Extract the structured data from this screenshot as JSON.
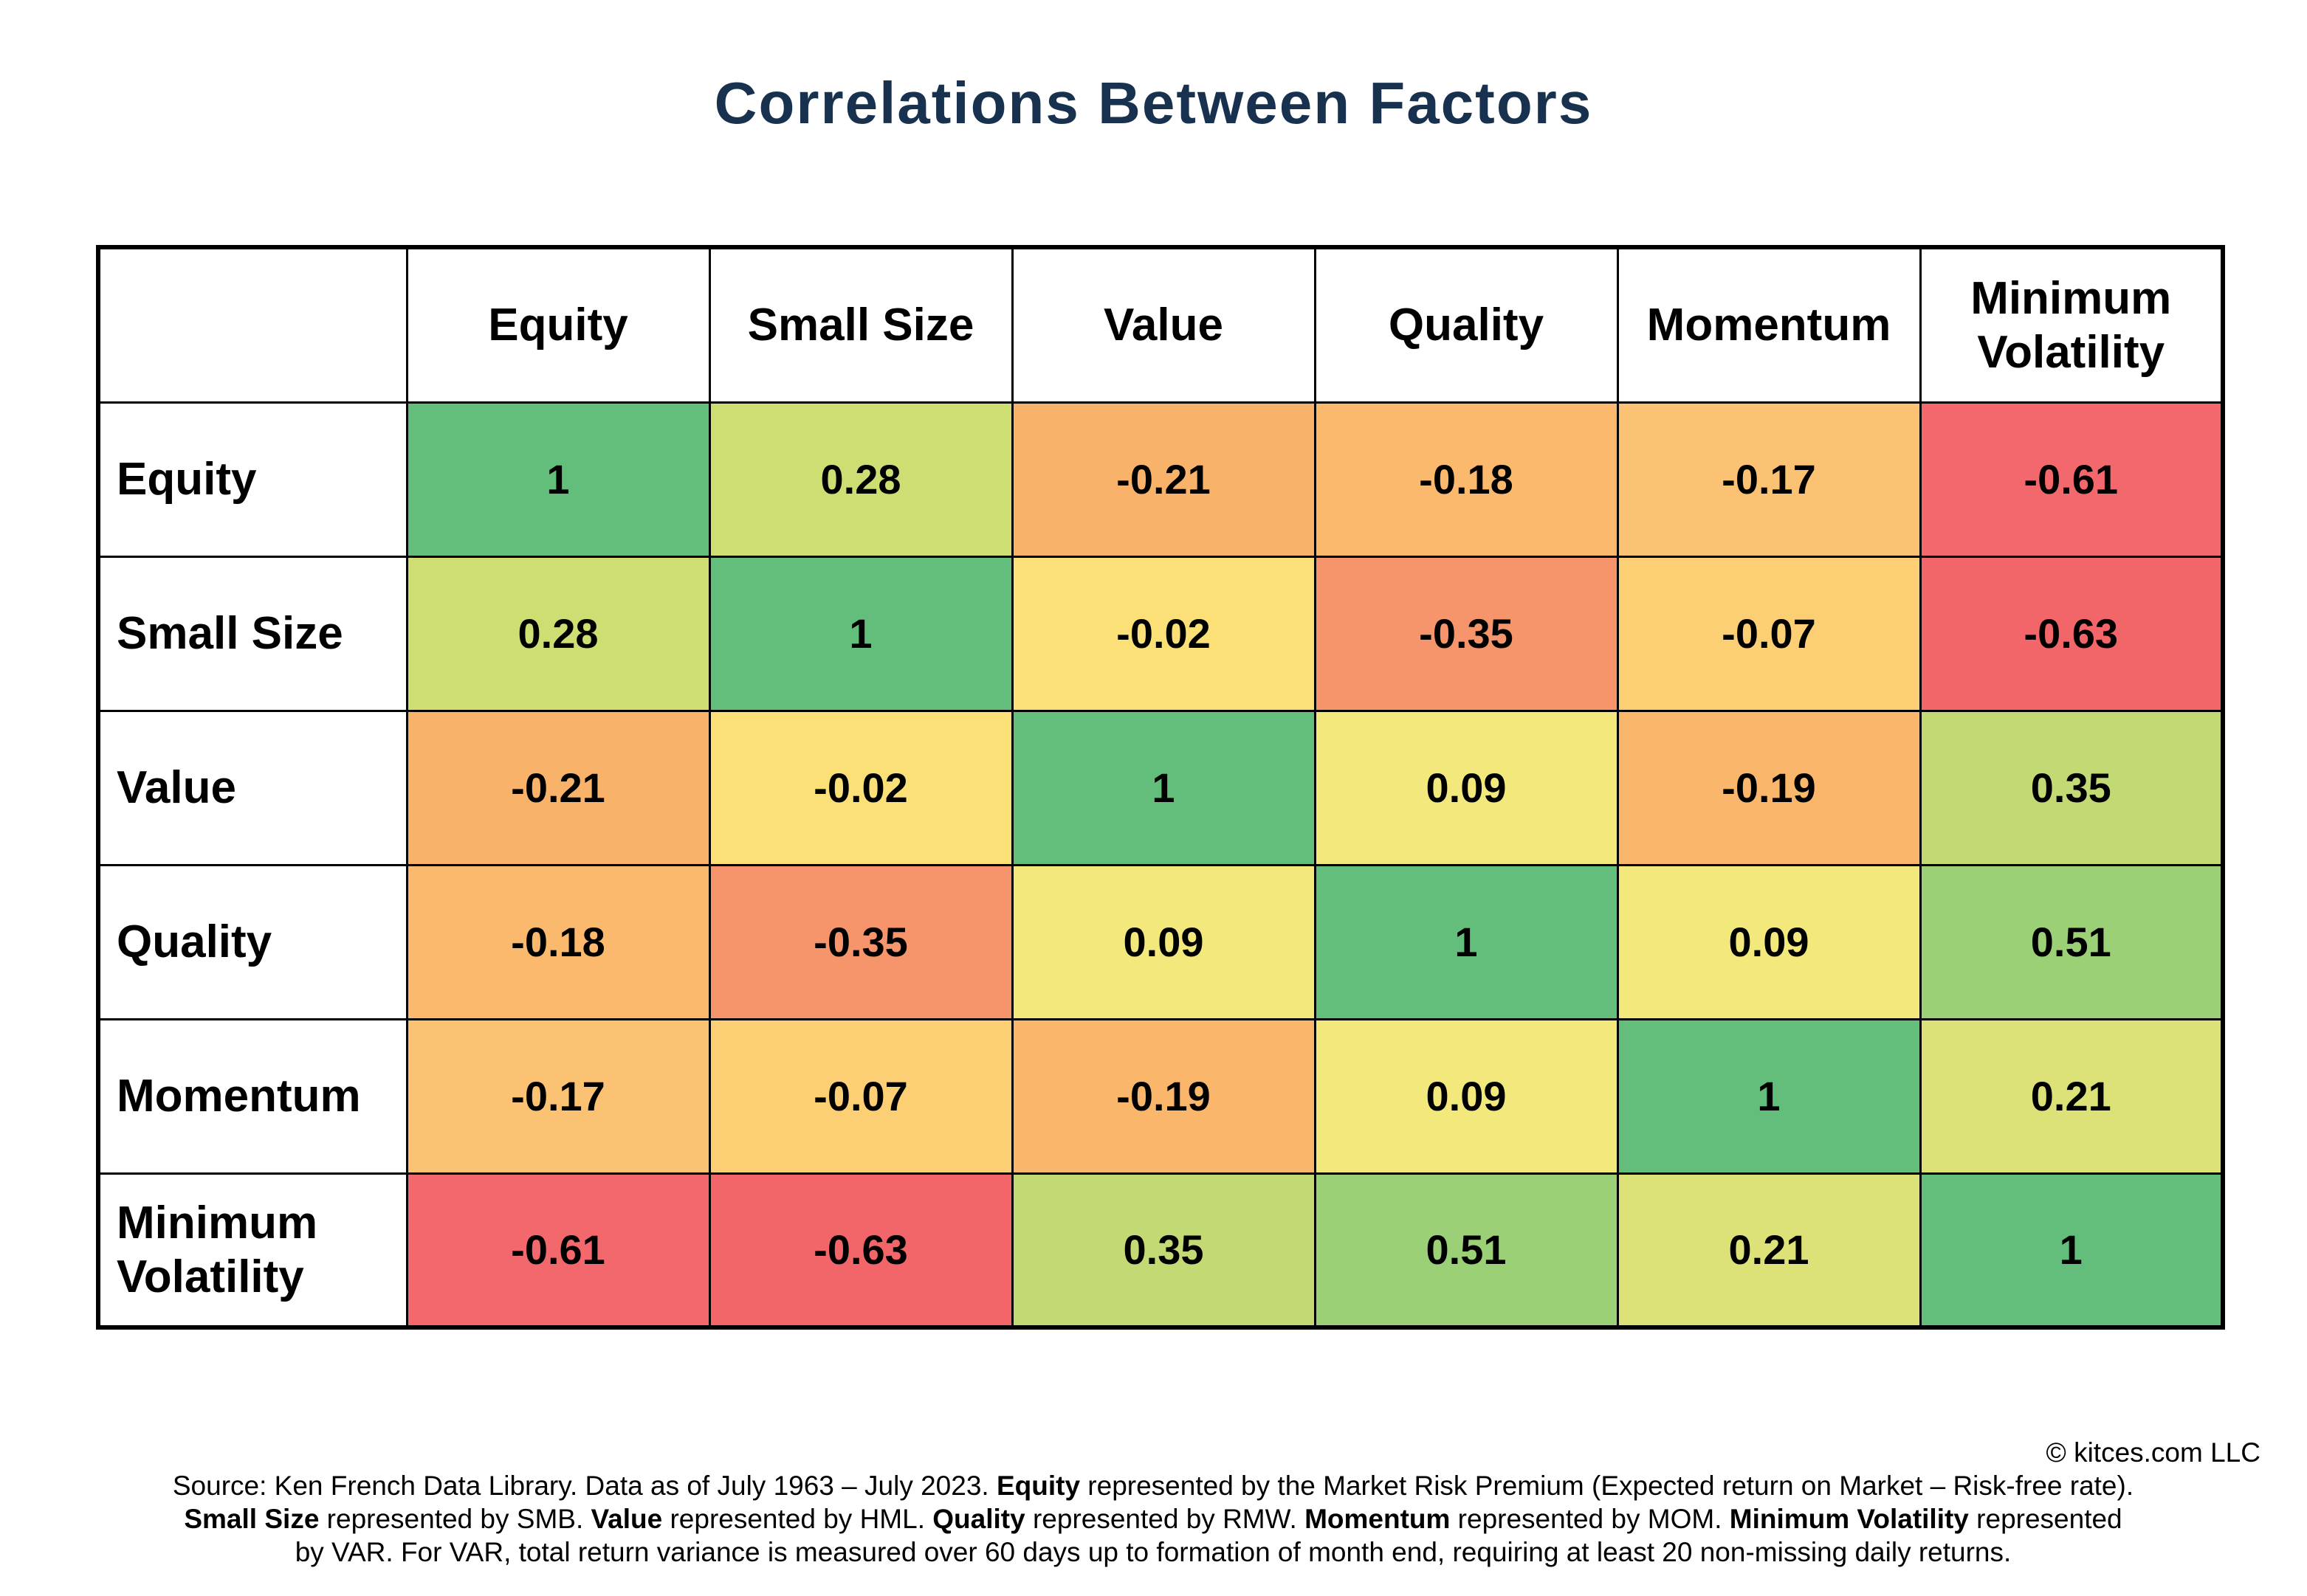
{
  "title": "Correlations Between Factors",
  "title_color": "#17314e",
  "matrix": {
    "corner": "",
    "column_headers": [
      "Equity",
      "Small Size",
      "Value",
      "Quality",
      "Momentum",
      "Minimum Volatility"
    ],
    "rows": [
      {
        "label": "Equity",
        "cells": [
          {
            "v": "1",
            "c": "#64be7b"
          },
          {
            "v": "0.28",
            "c": "#cede72"
          },
          {
            "v": "-0.21",
            "c": "#f9b26a"
          },
          {
            "v": "-0.18",
            "c": "#fab96d"
          },
          {
            "v": "-0.17",
            "c": "#fac272"
          },
          {
            "v": "-0.61",
            "c": "#f2686c"
          }
        ]
      },
      {
        "label": "Small Size",
        "cells": [
          {
            "v": "0.28",
            "c": "#cede72"
          },
          {
            "v": "1",
            "c": "#64be7b"
          },
          {
            "v": "-0.02",
            "c": "#fbe077"
          },
          {
            "v": "-0.35",
            "c": "#f6946c"
          },
          {
            "v": "-0.07",
            "c": "#fccf74"
          },
          {
            "v": "-0.63",
            "c": "#f2666a"
          }
        ]
      },
      {
        "label": "Value",
        "cells": [
          {
            "v": "-0.21",
            "c": "#f9b26a"
          },
          {
            "v": "-0.02",
            "c": "#fbe077"
          },
          {
            "v": "1",
            "c": "#64be7b"
          },
          {
            "v": "0.09",
            "c": "#f2e87c"
          },
          {
            "v": "-0.19",
            "c": "#fab76c"
          },
          {
            "v": "0.35",
            "c": "#c3da74"
          }
        ]
      },
      {
        "label": "Quality",
        "cells": [
          {
            "v": "-0.18",
            "c": "#fab96d"
          },
          {
            "v": "-0.35",
            "c": "#f6946c"
          },
          {
            "v": "0.09",
            "c": "#f2e87c"
          },
          {
            "v": "1",
            "c": "#64be7b"
          },
          {
            "v": "0.09",
            "c": "#f2e87c"
          },
          {
            "v": "0.51",
            "c": "#9bd077"
          }
        ]
      },
      {
        "label": "Momentum",
        "cells": [
          {
            "v": "-0.17",
            "c": "#fac272"
          },
          {
            "v": "-0.07",
            "c": "#fccf74"
          },
          {
            "v": "-0.19",
            "c": "#fab76c"
          },
          {
            "v": "0.09",
            "c": "#f2e87c"
          },
          {
            "v": "1",
            "c": "#64be7b"
          },
          {
            "v": "0.21",
            "c": "#dce277"
          }
        ]
      },
      {
        "label": "Minimum Volatility",
        "cells": [
          {
            "v": "-0.61",
            "c": "#f2686c"
          },
          {
            "v": "-0.63",
            "c": "#f2666a"
          },
          {
            "v": "0.35",
            "c": "#c3da74"
          },
          {
            "v": "0.51",
            "c": "#9bd077"
          },
          {
            "v": "0.21",
            "c": "#dce277"
          },
          {
            "v": "1",
            "c": "#64be7b"
          }
        ]
      }
    ]
  },
  "footer": {
    "copyright": "© kitces.com LLC",
    "source_line": [
      {
        "t": "Source: Ken French Data Library. Data as of July 1963 – July 2023. ",
        "b": false
      },
      {
        "t": "Equity",
        "b": true
      },
      {
        "t": " represented by the Market Risk Premium (Expected return on Market – Risk-free rate).",
        "b": false
      }
    ],
    "definitions_line": [
      {
        "t": "Small Size",
        "b": true
      },
      {
        "t": " represented by SMB. ",
        "b": false
      },
      {
        "t": "Value",
        "b": true
      },
      {
        "t": " represented by HML. ",
        "b": false
      },
      {
        "t": "Quality",
        "b": true
      },
      {
        "t": " represented by RMW. ",
        "b": false
      },
      {
        "t": "Momentum",
        "b": true
      },
      {
        "t": " represented by MOM. ",
        "b": false
      },
      {
        "t": "Minimum Volatility",
        "b": true
      },
      {
        "t": " represented",
        "b": false
      }
    ],
    "var_line": "by VAR. For VAR, total return variance is measured over 60 days up to formation of month end, requiring at least 20 non-missing daily returns."
  },
  "chart_data": {
    "type": "heatmap",
    "title": "Correlations Between Factors",
    "categories": [
      "Equity",
      "Small Size",
      "Value",
      "Quality",
      "Momentum",
      "Minimum Volatility"
    ],
    "matrix": [
      [
        1,
        0.28,
        -0.21,
        -0.18,
        -0.17,
        -0.61
      ],
      [
        0.28,
        1,
        -0.02,
        -0.35,
        -0.07,
        -0.63
      ],
      [
        -0.21,
        -0.02,
        1,
        0.09,
        -0.19,
        0.35
      ],
      [
        -0.18,
        -0.35,
        0.09,
        1,
        0.09,
        0.51
      ],
      [
        -0.17,
        -0.07,
        -0.19,
        0.09,
        1,
        0.21
      ],
      [
        -0.61,
        -0.63,
        0.35,
        0.51,
        0.21,
        1
      ]
    ],
    "value_range": [
      -1,
      1
    ],
    "color_scale": {
      "high_positive": "#64be7b",
      "near_zero": "#fbe077",
      "high_negative": "#f2666a"
    },
    "legend": "none",
    "grid": "black cell borders"
  }
}
